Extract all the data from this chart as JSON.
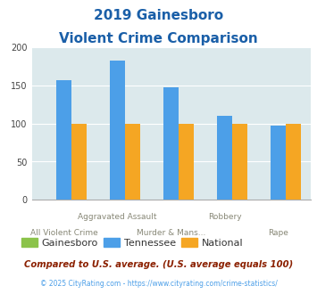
{
  "title_line1": "2019 Gainesboro",
  "title_line2": "Violent Crime Comparison",
  "groups": [
    {
      "label_top": "",
      "label_bot": "All Violent Crime",
      "gainesboro": 0,
      "tennessee": 157,
      "national": 100
    },
    {
      "label_top": "Aggravated Assault",
      "label_bot": "Murder & Mans...",
      "gainesboro": 0,
      "tennessee": 182,
      "national": 100
    },
    {
      "label_top": "",
      "label_bot": "",
      "gainesboro": 0,
      "tennessee": 147,
      "national": 100
    },
    {
      "label_top": "Robbery",
      "label_bot": "",
      "gainesboro": 0,
      "tennessee": 110,
      "national": 100
    },
    {
      "label_top": "",
      "label_bot": "Rape",
      "gainesboro": 0,
      "tennessee": 97,
      "national": 100
    }
  ],
  "color_gainesboro": "#8BC34A",
  "color_tennessee": "#4C9FE8",
  "color_national": "#F5A623",
  "ylim": [
    0,
    200
  ],
  "yticks": [
    0,
    50,
    100,
    150,
    200
  ],
  "plot_bg_color": "#dce9ec",
  "title_color": "#1A5FA8",
  "legend_label_color": "#333333",
  "footer_text": "Compared to U.S. average. (U.S. average equals 100)",
  "footer_color": "#8B2000",
  "copyright_text": "© 2025 CityRating.com - https://www.cityrating.com/crime-statistics/",
  "copyright_color": "#4C9FE8",
  "bar_width": 0.28
}
